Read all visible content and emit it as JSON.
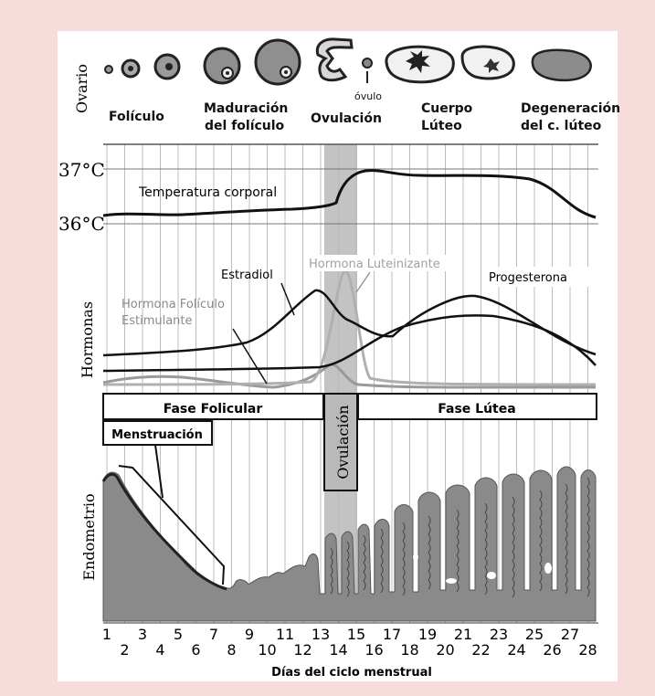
{
  "ovary": {
    "label": "Ovario",
    "stages": [
      "Folículo",
      "Maduración",
      "del folículo",
      "Ovulación",
      "óvulo",
      "Cuerpo",
      "Lúteo",
      "Degeneración",
      "del c. lúteo"
    ]
  },
  "temperature": {
    "tick_high": "37°C",
    "tick_low": "36°C",
    "curve_label": "Temperatura corporal"
  },
  "hormones": {
    "axis_label": "Hormonas",
    "estradiol": "Estradiol",
    "lh": "Hormona Luteinizante",
    "progesterone": "Progesterona",
    "fsh_line1": "Hormona Folículo",
    "fsh_line2": "Estimulante"
  },
  "phases": {
    "follicular": "Fase Folicular",
    "luteal": "Fase Lútea",
    "menstruation": "Menstruación",
    "ovulation": "Ovulación"
  },
  "endometrium": {
    "label": "Endometrio"
  },
  "x_axis": {
    "label": "Días del ciclo menstrual",
    "days": [
      "1",
      "2",
      "3",
      "4",
      "5",
      "6",
      "7",
      "8",
      "9",
      "10",
      "11",
      "12",
      "13",
      "14",
      "15",
      "16",
      "17",
      "18",
      "19",
      "20",
      "21",
      "22",
      "23",
      "24",
      "25",
      "26",
      "27",
      "28"
    ]
  },
  "colors": {
    "background": "#f7dcdc",
    "panel": "#ffffff",
    "ovulation_band": "#b9b9b9",
    "tissue": "#8a8a8a",
    "lh": "#a9a9a9",
    "fsh": "#9a9a9a"
  }
}
